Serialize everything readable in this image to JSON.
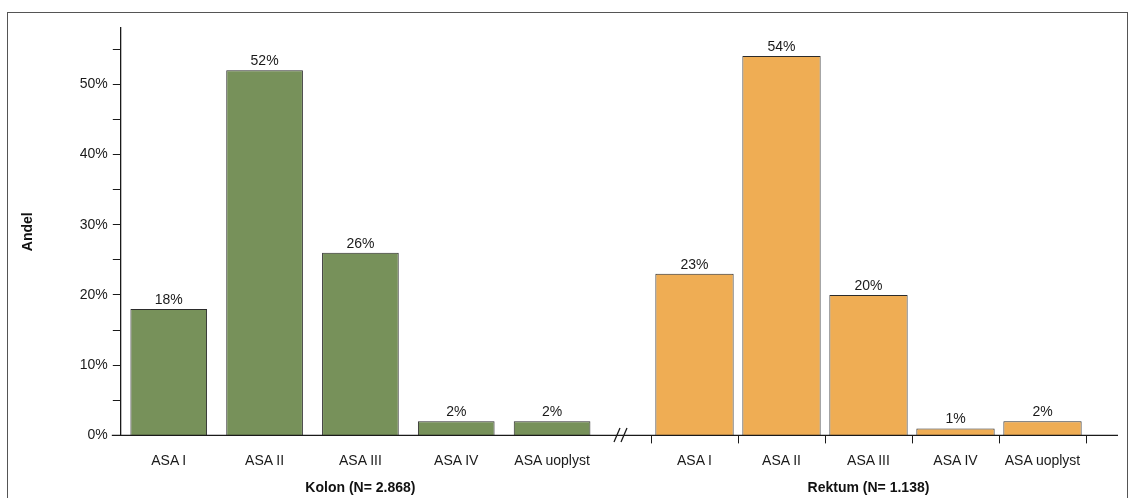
{
  "chart_data": [
    {
      "type": "bar",
      "categories": [
        "ASA I",
        "ASA II",
        "ASA III",
        "ASA IV",
        "ASA uoplyst"
      ],
      "values": [
        18,
        52,
        26,
        2,
        2
      ],
      "value_labels": [
        "18%",
        "52%",
        "26%",
        "2%",
        "2%"
      ],
      "color": "#77915a",
      "xlabel": "Kolon (N= 2.868)",
      "ylabel": "Andel",
      "ylim": [
        0,
        58
      ],
      "yticks": [
        {
          "value": 0,
          "label": "0%"
        },
        {
          "value": 5,
          "label": null
        },
        {
          "value": 10,
          "label": "10%"
        },
        {
          "value": 15,
          "label": null
        },
        {
          "value": 20,
          "label": "20%"
        },
        {
          "value": 25,
          "label": null
        },
        {
          "value": 30,
          "label": "30%"
        },
        {
          "value": 35,
          "label": null
        },
        {
          "value": 40,
          "label": "40%"
        },
        {
          "value": 45,
          "label": null
        },
        {
          "value": 50,
          "label": "50%"
        },
        {
          "value": 55,
          "label": null
        }
      ]
    },
    {
      "type": "bar",
      "categories": [
        "ASA I",
        "ASA II",
        "ASA III",
        "ASA IV",
        "ASA uoplyst"
      ],
      "values": [
        23,
        54,
        20,
        1,
        2
      ],
      "value_labels": [
        "23%",
        "54%",
        "20%",
        "1%",
        "2%"
      ],
      "color": "#efad54",
      "xlabel": "Rektum (N= 1.138)",
      "tick_labels": "x"
    }
  ]
}
